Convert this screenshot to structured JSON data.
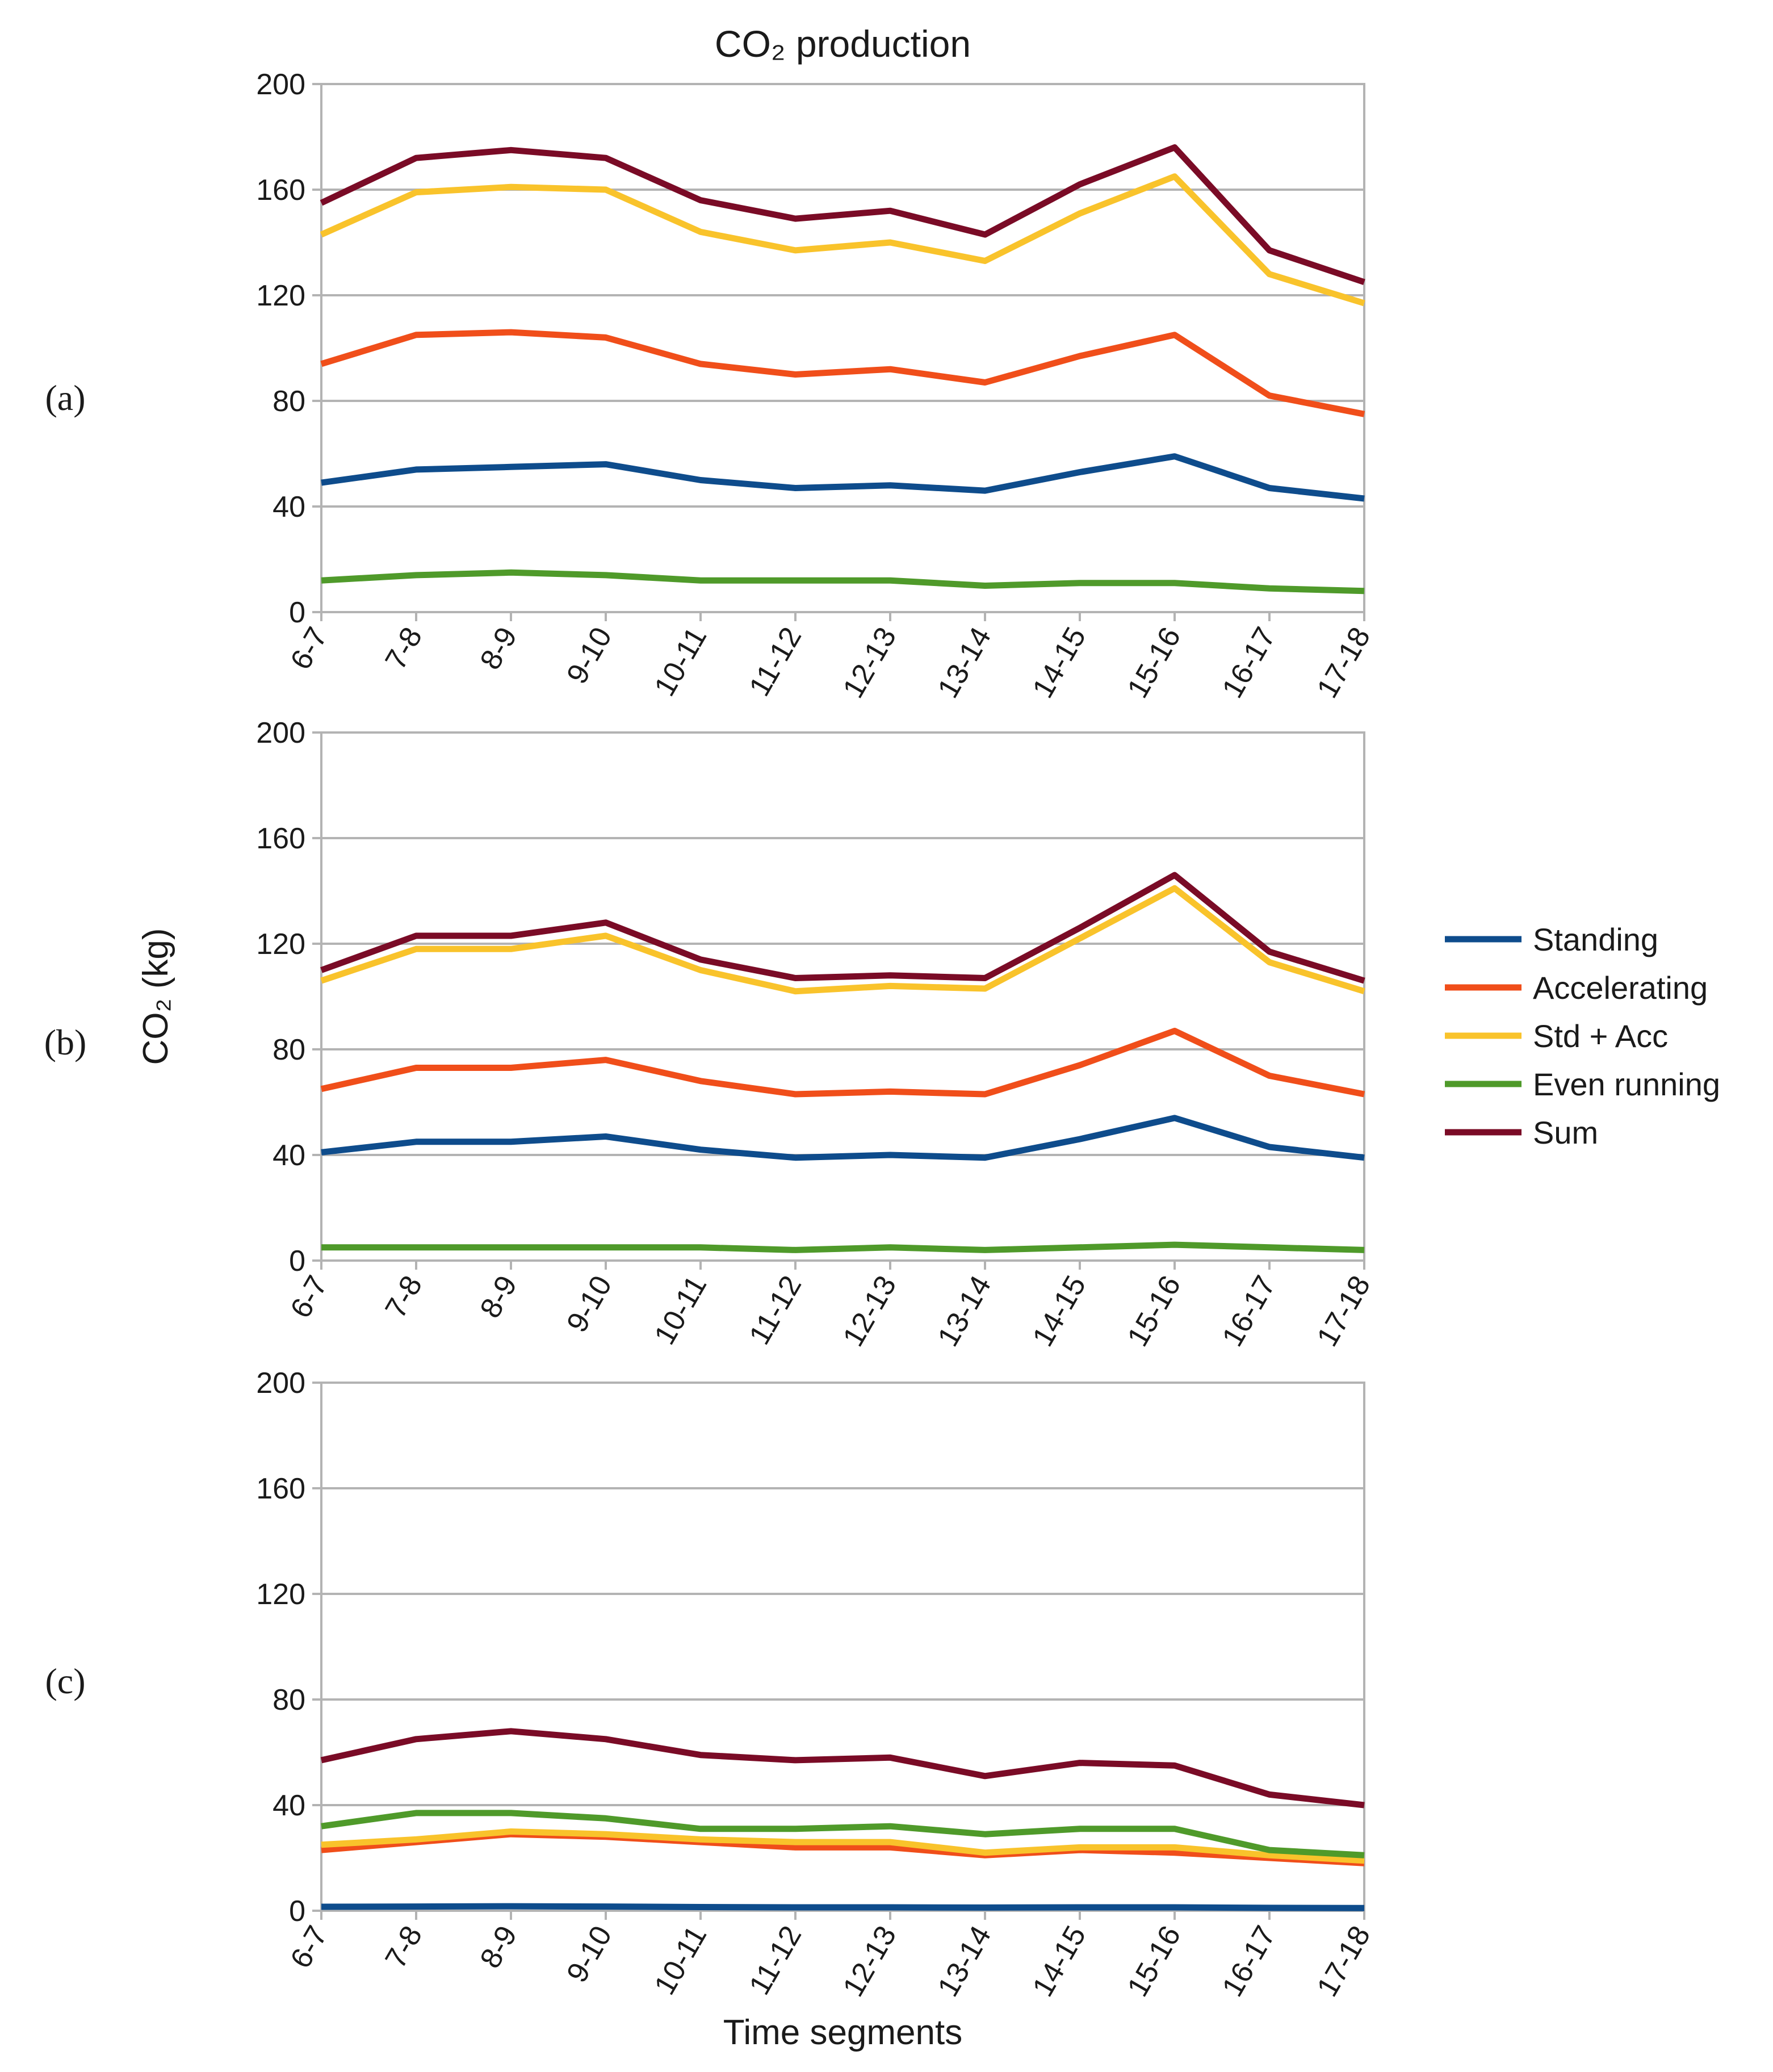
{
  "chart_data": [
    {
      "type": "line",
      "panel_label": "(a)",
      "title": "CO₂ production",
      "categories": [
        "6-7",
        "7-8",
        "8-9",
        "9-10",
        "10-11",
        "11-12",
        "12-13",
        "13-14",
        "14-15",
        "15-16",
        "16-17",
        "17-18"
      ],
      "yticks": [
        "0",
        "40",
        "80",
        "120",
        "160",
        "200"
      ],
      "ylim": [
        0,
        200
      ],
      "series": [
        {
          "name": "Standing",
          "color": "#0e4c8c",
          "values": [
            49,
            54,
            55,
            56,
            50,
            47,
            48,
            46,
            53,
            59,
            47,
            43
          ]
        },
        {
          "name": "Accelerating",
          "color": "#f04e1a",
          "values": [
            94,
            105,
            106,
            104,
            94,
            90,
            92,
            87,
            97,
            105,
            82,
            75
          ]
        },
        {
          "name": "Std + Acc",
          "color": "#f9c32b",
          "values": [
            143,
            159,
            161,
            160,
            144,
            137,
            140,
            133,
            151,
            165,
            128,
            117
          ]
        },
        {
          "name": "Even running",
          "color": "#4f9a2a",
          "values": [
            12,
            14,
            15,
            14,
            12,
            12,
            12,
            10,
            11,
            11,
            9,
            8
          ]
        },
        {
          "name": "Sum",
          "color": "#7a0b26",
          "values": [
            155,
            172,
            175,
            172,
            156,
            149,
            152,
            143,
            162,
            176,
            137,
            125
          ]
        }
      ]
    },
    {
      "type": "line",
      "panel_label": "(b)",
      "categories": [
        "6-7",
        "7-8",
        "8-9",
        "9-10",
        "10-11",
        "11-12",
        "12-13",
        "13-14",
        "14-15",
        "15-16",
        "16-17",
        "17-18"
      ],
      "yticks": [
        "0",
        "40",
        "80",
        "120",
        "160",
        "200"
      ],
      "ylim": [
        0,
        200
      ],
      "ylabel": "CO₂ (kg)",
      "series": [
        {
          "name": "Standing",
          "color": "#0e4c8c",
          "values": [
            41,
            45,
            45,
            47,
            42,
            39,
            40,
            39,
            46,
            54,
            43,
            39
          ]
        },
        {
          "name": "Accelerating",
          "color": "#f04e1a",
          "values": [
            65,
            73,
            73,
            76,
            68,
            63,
            64,
            63,
            74,
            87,
            70,
            63
          ]
        },
        {
          "name": "Std + Acc",
          "color": "#f9c32b",
          "values": [
            106,
            118,
            118,
            123,
            110,
            102,
            104,
            103,
            122,
            141,
            113,
            102
          ]
        },
        {
          "name": "Even running",
          "color": "#4f9a2a",
          "values": [
            5,
            5,
            5,
            5,
            5,
            4,
            5,
            4,
            5,
            6,
            5,
            4
          ]
        },
        {
          "name": "Sum",
          "color": "#7a0b26",
          "values": [
            110,
            123,
            123,
            128,
            114,
            107,
            108,
            107,
            126,
            146,
            117,
            106
          ]
        }
      ]
    },
    {
      "type": "line",
      "panel_label": "(c)",
      "categories": [
        "6-7",
        "7-8",
        "8-9",
        "9-10",
        "10-11",
        "11-12",
        "12-13",
        "13-14",
        "14-15",
        "15-16",
        "16-17",
        "17-18"
      ],
      "yticks": [
        "0",
        "40",
        "80",
        "120",
        "160",
        "200"
      ],
      "ylim": [
        0,
        200
      ],
      "xlabel": "Time segments",
      "series": [
        {
          "name": "Standing",
          "color": "#0e4c8c",
          "values": [
            1.5,
            1.6,
            1.7,
            1.6,
            1.4,
            1.3,
            1.3,
            1.2,
            1.3,
            1.3,
            1.1,
            1.0
          ]
        },
        {
          "name": "Accelerating",
          "color": "#f04e1a",
          "values": [
            23,
            26,
            29,
            28,
            26,
            24,
            24,
            21,
            23,
            22,
            20,
            18
          ]
        },
        {
          "name": "Std + Acc",
          "color": "#f9c32b",
          "values": [
            25,
            27,
            30,
            29,
            27,
            26,
            26,
            22,
            24,
            24,
            21,
            19
          ]
        },
        {
          "name": "Even running",
          "color": "#4f9a2a",
          "values": [
            32,
            37,
            37,
            35,
            31,
            31,
            32,
            29,
            31,
            31,
            23,
            21
          ]
        },
        {
          "name": "Sum",
          "color": "#7a0b26",
          "values": [
            57,
            65,
            68,
            65,
            59,
            57,
            58,
            51,
            56,
            55,
            44,
            40
          ]
        }
      ]
    }
  ],
  "legend": {
    "placement": "right",
    "items": [
      {
        "name": "Standing",
        "color": "#0e4c8c"
      },
      {
        "name": "Accelerating",
        "color": "#f04e1a"
      },
      {
        "name": "Std + Acc",
        "color": "#f9c32b"
      },
      {
        "name": "Even running",
        "color": "#4f9a2a"
      },
      {
        "name": "Sum",
        "color": "#7a0b26"
      }
    ]
  }
}
